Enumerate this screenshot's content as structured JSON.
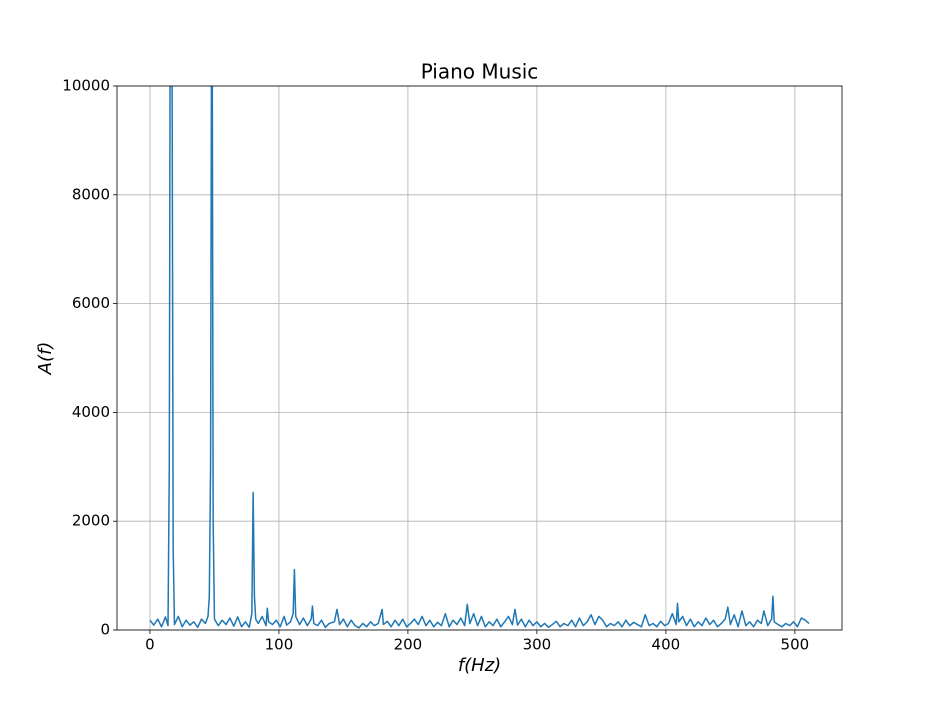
{
  "chart_data": {
    "type": "line",
    "title": "Piano Music",
    "x_label": "f(Hz)",
    "y_label": "A(f)",
    "color": "#1f77b4",
    "grid": true,
    "xlim": [
      -25.55,
      536.55
    ],
    "ylim": [
      0,
      10000
    ],
    "xticks": [
      0,
      100,
      200,
      300,
      400,
      500
    ],
    "yticks": [
      0,
      2000,
      4000,
      6000,
      8000,
      10000
    ],
    "x": [
      0,
      3,
      6,
      9,
      12,
      14,
      15,
      16,
      17,
      18,
      19,
      22,
      25,
      28,
      31,
      34,
      37,
      40,
      43,
      45,
      46,
      47,
      48,
      49,
      50,
      53,
      56,
      59,
      62,
      65,
      68,
      71,
      74,
      77,
      79,
      80,
      81,
      82,
      84,
      87,
      90,
      91,
      92,
      95,
      98,
      101,
      104,
      106,
      109,
      111,
      112,
      113,
      116,
      119,
      122,
      125,
      126,
      127,
      130,
      133,
      136,
      139,
      143,
      145,
      147,
      150,
      153,
      156,
      159,
      162,
      165,
      168,
      171,
      174,
      177,
      180,
      181,
      184,
      187,
      190,
      193,
      196,
      199,
      202,
      205,
      208,
      211,
      214,
      217,
      220,
      223,
      226,
      229,
      232,
      235,
      238,
      241,
      244,
      246,
      248,
      251,
      254,
      257,
      260,
      263,
      266,
      269,
      272,
      275,
      278,
      281,
      283,
      285,
      288,
      291,
      294,
      297,
      300,
      303,
      306,
      309,
      312,
      315,
      318,
      321,
      324,
      327,
      330,
      333,
      336,
      339,
      342,
      345,
      348,
      351,
      354,
      357,
      360,
      363,
      366,
      369,
      372,
      375,
      378,
      381,
      384,
      387,
      390,
      393,
      396,
      399,
      402,
      405,
      408,
      409,
      410,
      413,
      416,
      419,
      422,
      425,
      428,
      431,
      434,
      437,
      440,
      443,
      446,
      448,
      450,
      453,
      456,
      459,
      462,
      465,
      468,
      471,
      474,
      476,
      479,
      482,
      483,
      484,
      487,
      490,
      493,
      496,
      499,
      502,
      505,
      508,
      511
    ],
    "values": [
      180,
      90,
      200,
      60,
      240,
      80,
      3000,
      15000,
      12000,
      1500,
      100,
      250,
      60,
      180,
      90,
      150,
      50,
      200,
      120,
      250,
      600,
      3000,
      14000,
      2000,
      200,
      80,
      180,
      100,
      220,
      70,
      240,
      60,
      150,
      50,
      300,
      2530,
      620,
      200,
      120,
      250,
      80,
      400,
      150,
      100,
      180,
      60,
      250,
      90,
      150,
      300,
      1110,
      250,
      100,
      220,
      80,
      200,
      440,
      120,
      80,
      180,
      50,
      120,
      150,
      380,
      100,
      200,
      60,
      180,
      80,
      40,
      120,
      60,
      150,
      80,
      120,
      380,
      100,
      160,
      60,
      180,
      80,
      200,
      60,
      120,
      200,
      100,
      250,
      80,
      180,
      60,
      140,
      80,
      300,
      60,
      180,
      100,
      220,
      80,
      470,
      120,
      300,
      80,
      250,
      60,
      150,
      80,
      200,
      60,
      150,
      250,
      100,
      380,
      90,
      200,
      60,
      180,
      80,
      150,
      60,
      120,
      50,
      100,
      160,
      60,
      120,
      80,
      180,
      60,
      220,
      80,
      150,
      280,
      100,
      250,
      180,
      60,
      120,
      80,
      150,
      60,
      180,
      80,
      140,
      100,
      60,
      280,
      80,
      120,
      60,
      160,
      80,
      120,
      300,
      100,
      490,
      150,
      250,
      80,
      200,
      60,
      150,
      80,
      220,
      100,
      180,
      60,
      120,
      200,
      420,
      100,
      280,
      60,
      350,
      80,
      150,
      60,
      180,
      120,
      350,
      80,
      200,
      620,
      150,
      100,
      60,
      120,
      80,
      150,
      60,
      220,
      180,
      120
    ]
  }
}
